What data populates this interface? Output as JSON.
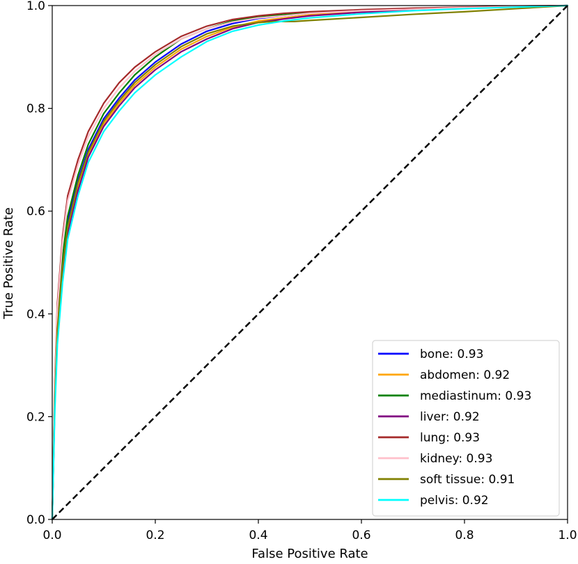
{
  "chart_data": {
    "type": "line",
    "title": "",
    "xlabel": "False Positive Rate",
    "ylabel": "True Positive Rate",
    "xlim": [
      0.0,
      1.0
    ],
    "ylim": [
      0.0,
      1.0
    ],
    "xticks": [
      "0.0",
      "0.2",
      "0.4",
      "0.6",
      "0.8",
      "1.0"
    ],
    "yticks": [
      "0.0",
      "0.2",
      "0.4",
      "0.6",
      "0.8",
      "1.0"
    ],
    "grid": false,
    "legend_position": "lower-right",
    "series": [
      {
        "name": "bone: 0.93",
        "color": "#0000ff",
        "x": [
          0.0,
          0.005,
          0.01,
          0.02,
          0.03,
          0.05,
          0.07,
          0.1,
          0.13,
          0.16,
          0.2,
          0.25,
          0.3,
          0.35,
          0.4,
          0.45,
          0.5,
          0.6,
          0.7,
          0.8,
          0.9,
          1.0
        ],
        "y": [
          0.0,
          0.24,
          0.38,
          0.5,
          0.58,
          0.66,
          0.72,
          0.78,
          0.82,
          0.855,
          0.89,
          0.925,
          0.95,
          0.965,
          0.975,
          0.98,
          0.985,
          0.99,
          0.993,
          0.996,
          0.998,
          1.0
        ]
      },
      {
        "name": "abdomen: 0.92",
        "color": "#ffa500",
        "x": [
          0.0,
          0.005,
          0.01,
          0.02,
          0.03,
          0.05,
          0.07,
          0.1,
          0.13,
          0.16,
          0.2,
          0.25,
          0.3,
          0.35,
          0.4,
          0.45,
          0.5,
          0.6,
          0.7,
          0.8,
          0.9,
          1.0
        ],
        "y": [
          0.0,
          0.23,
          0.36,
          0.48,
          0.56,
          0.645,
          0.71,
          0.77,
          0.81,
          0.845,
          0.88,
          0.915,
          0.94,
          0.958,
          0.97,
          0.976,
          0.982,
          0.988,
          0.992,
          0.995,
          0.998,
          1.0
        ]
      },
      {
        "name": "mediastinum: 0.93",
        "color": "#008000",
        "x": [
          0.0,
          0.005,
          0.01,
          0.02,
          0.03,
          0.05,
          0.07,
          0.1,
          0.13,
          0.16,
          0.2,
          0.25,
          0.3,
          0.35,
          0.4,
          0.45,
          0.5,
          0.6,
          0.7,
          0.8,
          0.9,
          1.0
        ],
        "y": [
          0.0,
          0.25,
          0.39,
          0.51,
          0.59,
          0.67,
          0.73,
          0.79,
          0.83,
          0.865,
          0.9,
          0.935,
          0.955,
          0.97,
          0.978,
          0.982,
          0.986,
          0.99,
          0.993,
          0.996,
          0.998,
          1.0
        ]
      },
      {
        "name": "liver: 0.92",
        "color": "#800080",
        "x": [
          0.0,
          0.005,
          0.01,
          0.02,
          0.03,
          0.05,
          0.07,
          0.1,
          0.13,
          0.16,
          0.2,
          0.25,
          0.3,
          0.35,
          0.4,
          0.45,
          0.5,
          0.6,
          0.7,
          0.8,
          0.9,
          1.0
        ],
        "y": [
          0.0,
          0.22,
          0.35,
          0.47,
          0.555,
          0.64,
          0.705,
          0.765,
          0.805,
          0.84,
          0.875,
          0.91,
          0.935,
          0.955,
          0.967,
          0.974,
          0.98,
          0.987,
          0.991,
          0.995,
          0.998,
          1.0
        ]
      },
      {
        "name": "lung: 0.93",
        "color": "#a52a2a",
        "x": [
          0.0,
          0.005,
          0.01,
          0.02,
          0.03,
          0.05,
          0.07,
          0.1,
          0.13,
          0.16,
          0.2,
          0.25,
          0.3,
          0.35,
          0.4,
          0.45,
          0.5,
          0.6,
          0.7,
          0.8,
          0.9,
          1.0
        ],
        "y": [
          0.0,
          0.27,
          0.42,
          0.55,
          0.63,
          0.7,
          0.755,
          0.81,
          0.85,
          0.88,
          0.91,
          0.94,
          0.96,
          0.973,
          0.98,
          0.985,
          0.988,
          0.992,
          0.995,
          0.997,
          0.999,
          1.0
        ]
      },
      {
        "name": "kidney: 0.93",
        "color": "#ffc0cb",
        "x": [
          0.0,
          0.005,
          0.01,
          0.02,
          0.03,
          0.05,
          0.07,
          0.1,
          0.13,
          0.16,
          0.2,
          0.25,
          0.3,
          0.35,
          0.4,
          0.45,
          0.5,
          0.6,
          0.7,
          0.8,
          0.9,
          1.0
        ],
        "y": [
          0.0,
          0.26,
          0.41,
          0.54,
          0.62,
          0.69,
          0.745,
          0.8,
          0.84,
          0.872,
          0.905,
          0.935,
          0.955,
          0.968,
          0.976,
          0.98,
          0.985,
          0.99,
          0.993,
          0.996,
          0.998,
          1.0
        ]
      },
      {
        "name": "soft tissue: 0.91",
        "color": "#808000",
        "x": [
          0.0,
          0.005,
          0.01,
          0.02,
          0.03,
          0.05,
          0.07,
          0.1,
          0.13,
          0.16,
          0.2,
          0.25,
          0.3,
          0.35,
          0.4,
          0.43,
          0.47,
          0.5,
          0.6,
          0.7,
          0.8,
          0.9,
          1.0
        ],
        "y": [
          0.0,
          0.23,
          0.37,
          0.49,
          0.57,
          0.655,
          0.715,
          0.775,
          0.815,
          0.85,
          0.885,
          0.92,
          0.945,
          0.96,
          0.967,
          0.969,
          0.969,
          0.971,
          0.977,
          0.983,
          0.988,
          0.994,
          1.0
        ]
      },
      {
        "name": "pelvis: 0.92",
        "color": "#00ffff",
        "x": [
          0.0,
          0.005,
          0.01,
          0.02,
          0.03,
          0.05,
          0.07,
          0.1,
          0.13,
          0.16,
          0.2,
          0.25,
          0.3,
          0.35,
          0.4,
          0.45,
          0.5,
          0.6,
          0.7,
          0.8,
          0.9,
          1.0
        ],
        "y": [
          0.0,
          0.21,
          0.34,
          0.46,
          0.545,
          0.63,
          0.695,
          0.755,
          0.795,
          0.83,
          0.865,
          0.9,
          0.93,
          0.95,
          0.962,
          0.97,
          0.976,
          0.984,
          0.99,
          0.994,
          0.997,
          1.0
        ]
      }
    ],
    "reference_line": {
      "style": "dashed",
      "color": "#000000",
      "x": [
        0.0,
        1.0
      ],
      "y": [
        0.0,
        1.0
      ]
    }
  }
}
